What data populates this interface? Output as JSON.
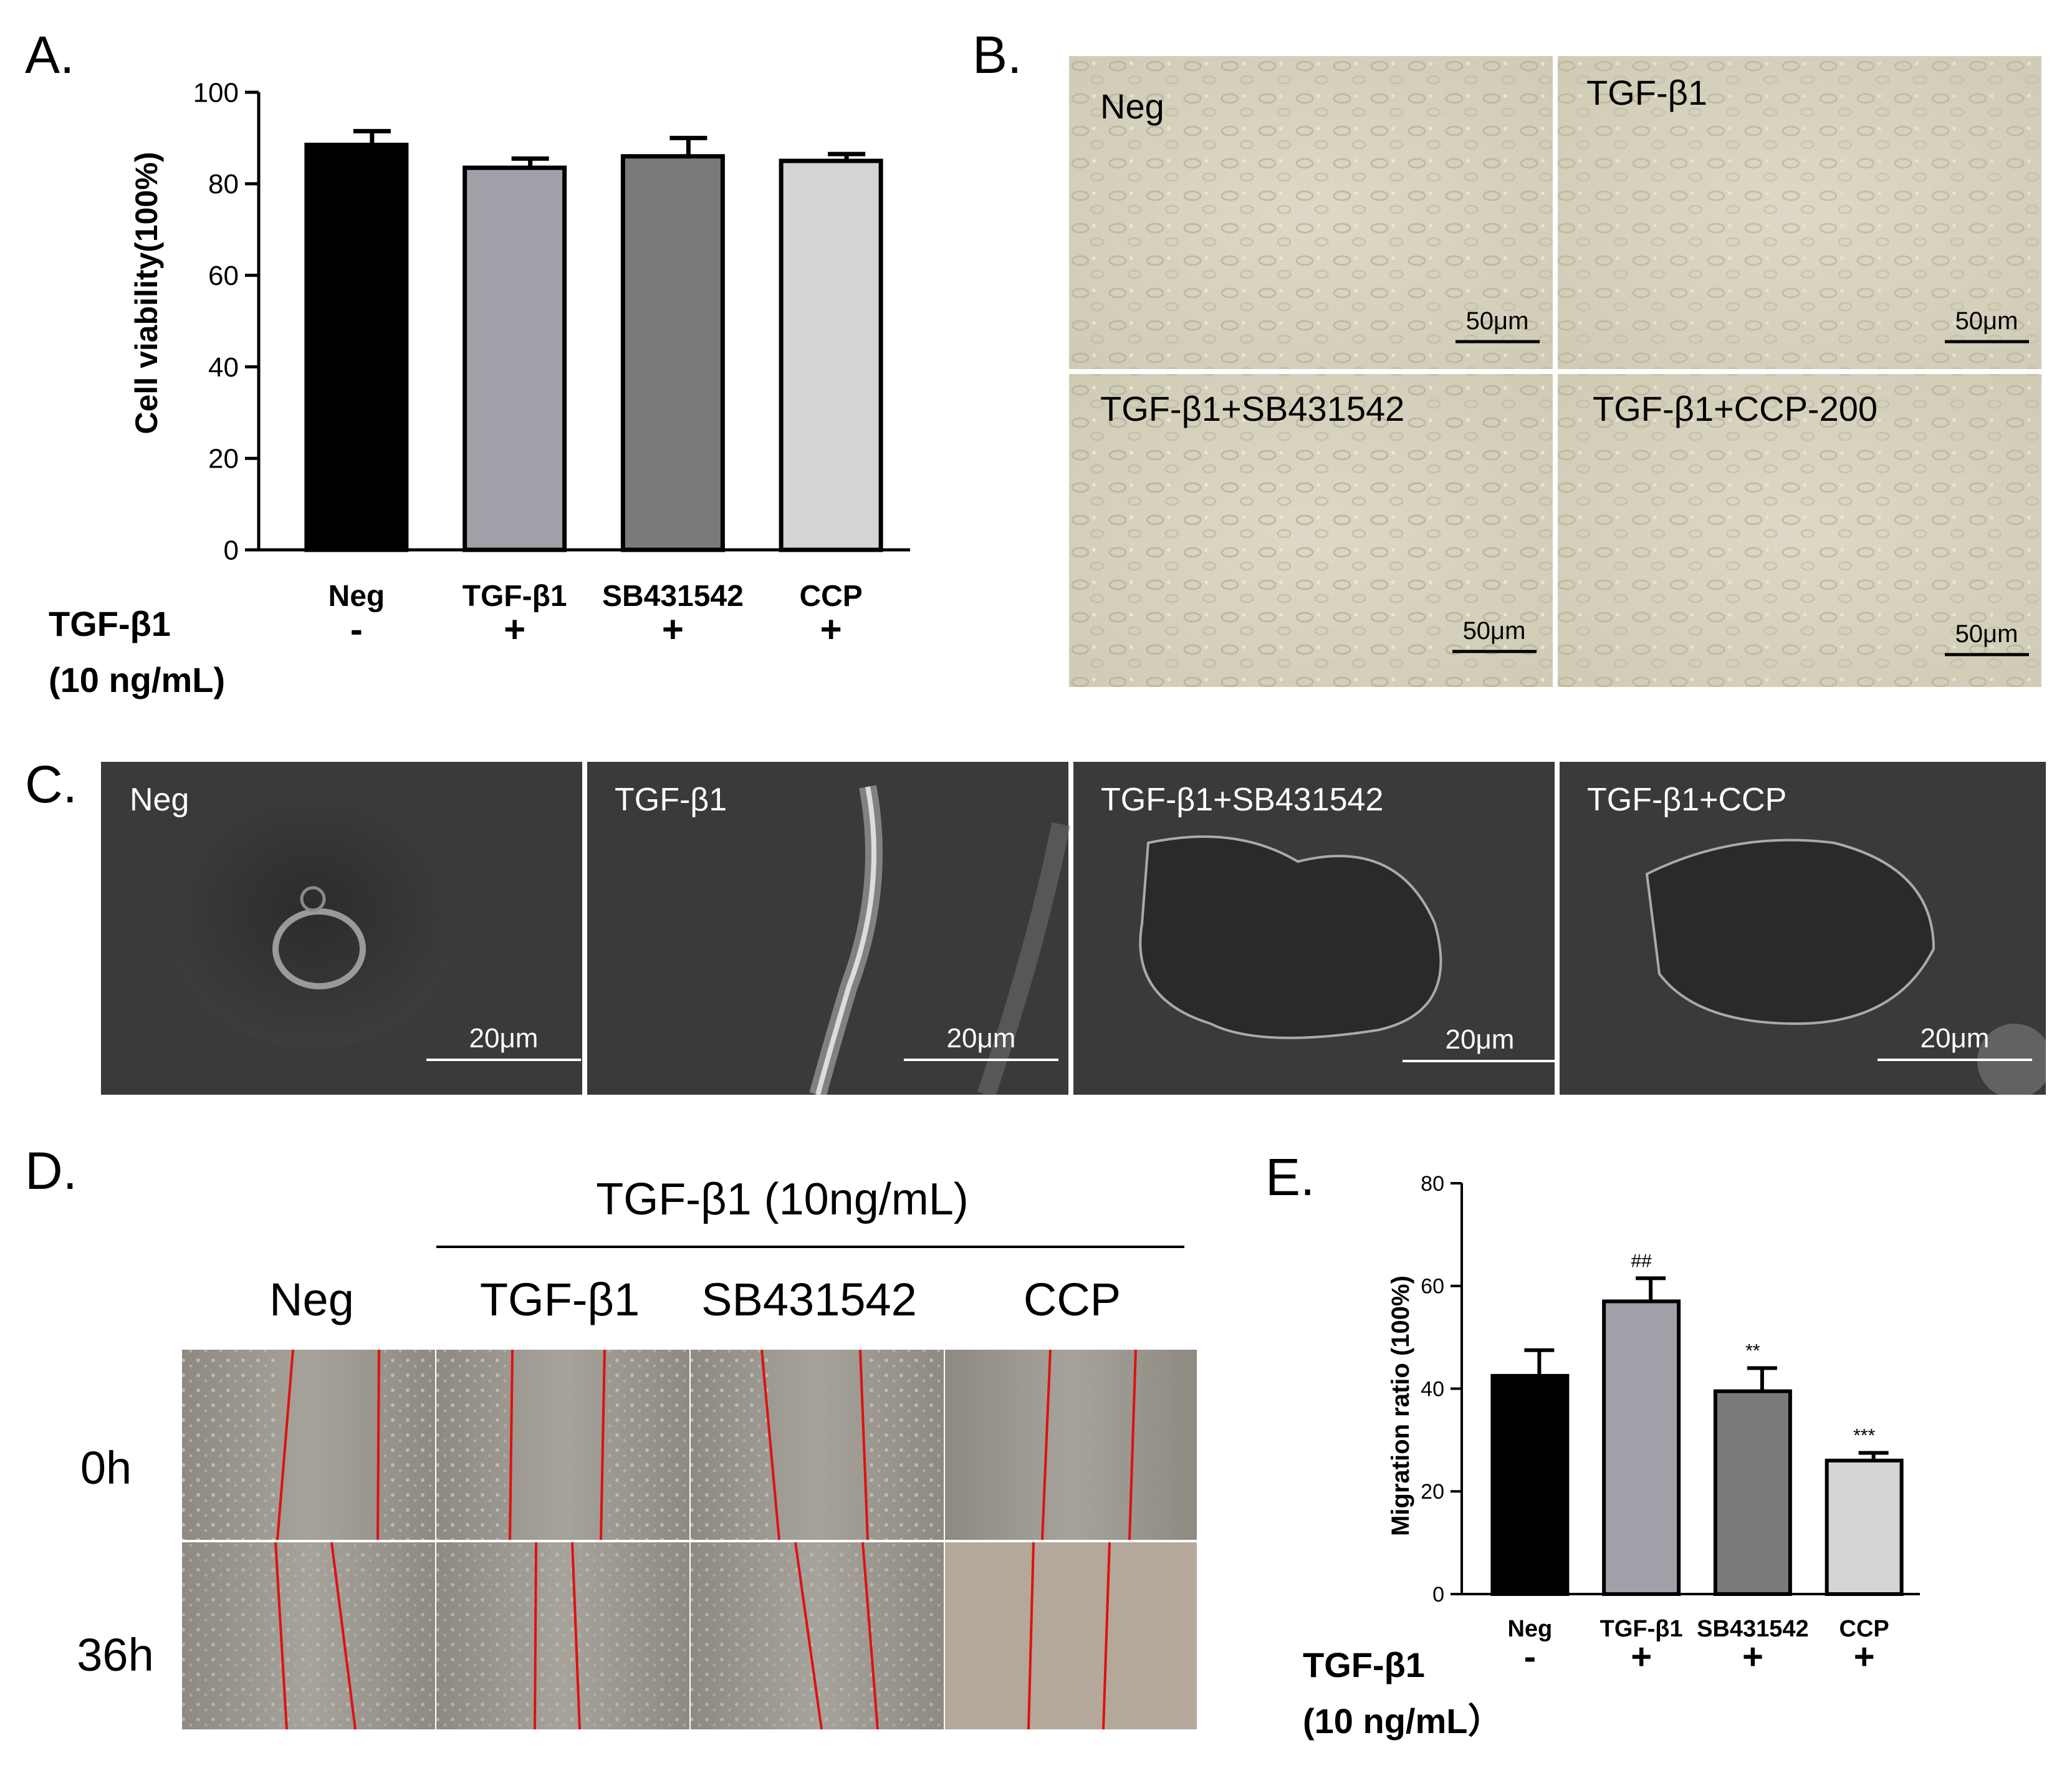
{
  "panels": {
    "A": "A.",
    "B": "B.",
    "C": "C.",
    "D": "D.",
    "E": "E."
  },
  "treatment_label": {
    "line1": "TGF-β1",
    "line2": "(10 ng/mL)"
  },
  "treatment_label_E": {
    "line1": "TGF-β1",
    "line2": "(10 ng/mL）"
  },
  "chart_data": [
    {
      "type": "bar",
      "panel": "A",
      "categories": [
        "Neg",
        "TGF-β1",
        "SB431542",
        "CCP"
      ],
      "values": [
        88.5,
        83.5,
        86,
        85
      ],
      "errors": [
        3,
        2,
        4,
        1.5
      ],
      "signs": [
        "-",
        "+",
        "+",
        "+"
      ],
      "ylabel": "Cell viability(100%)",
      "ylim": [
        0,
        100
      ],
      "yticks": [
        0,
        20,
        40,
        60,
        80,
        100
      ],
      "colors": [
        "#000000",
        "#a0a0a8",
        "#7a7a7a",
        "#d4d4d4"
      ]
    },
    {
      "type": "bar",
      "panel": "E",
      "categories": [
        "Neg",
        "TGF-β1",
        "SB431542",
        "CCP"
      ],
      "values": [
        42.5,
        57,
        39.5,
        26
      ],
      "errors": [
        5,
        4.5,
        4.5,
        1.5
      ],
      "signs": [
        "-",
        "+",
        "+",
        "+"
      ],
      "annotations": [
        "",
        "##",
        "**",
        "***"
      ],
      "ylabel": "Migration ratio (100%)",
      "ylim": [
        0,
        80
      ],
      "yticks": [
        0,
        20,
        40,
        60,
        80
      ],
      "colors": [
        "#000000",
        "#a0a0a8",
        "#7a7a7a",
        "#d4d4d4"
      ]
    }
  ],
  "panel_B": {
    "images": [
      {
        "label": "Neg",
        "scale": "50μm"
      },
      {
        "label": "TGF-β1",
        "scale": "50μm"
      },
      {
        "label": "TGF-β1+SB431542",
        "scale": "50μm"
      },
      {
        "label": "TGF-β1+CCP-200",
        "scale": "50μm"
      }
    ]
  },
  "panel_C": {
    "images": [
      {
        "label": "Neg",
        "scale": "20μm"
      },
      {
        "label": "TGF-β1",
        "scale": "20μm"
      },
      {
        "label": "TGF-β1+SB431542",
        "scale": "20μm"
      },
      {
        "label": "TGF-β1+CCP",
        "scale": "20μm"
      }
    ]
  },
  "panel_D": {
    "group_header": "TGF-β1 (10ng/mL)",
    "columns": [
      "Neg",
      "TGF-β1",
      "SB431542",
      "CCP"
    ],
    "rows": [
      "0h",
      "36h"
    ]
  }
}
